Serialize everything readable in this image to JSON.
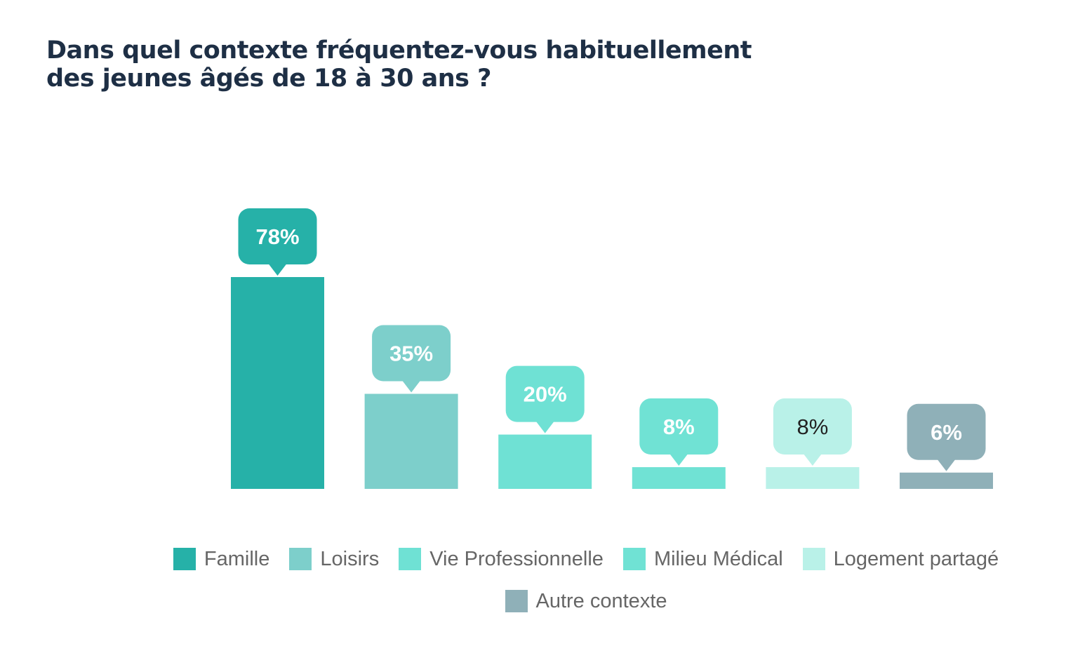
{
  "title": {
    "line1": "Dans quel contexte fréquentez-vous habituellement",
    "line2": "des jeunes âgés de 18 à 30 ans ?"
  },
  "chart_data": {
    "type": "bar",
    "title": "Dans quel contexte fréquentez-vous habituellement des jeunes âgés de 18 à 30 ans ?",
    "xlabel": "",
    "ylabel": "",
    "ylim": [
      0,
      100
    ],
    "grid": false,
    "legend_position": "bottom",
    "categories": [
      "Famille",
      "Loisirs",
      "Vie Professionnelle",
      "Milieu Médical",
      "Logement partagé",
      "Autre contexte"
    ],
    "values": [
      78,
      35,
      20,
      8,
      8,
      6
    ],
    "data_labels": [
      "78%",
      "35%",
      "20%",
      "8%",
      "8%",
      "6%"
    ],
    "colors": [
      "#26b1a8",
      "#7dcfcb",
      "#6fe1d4",
      "#70e2d4",
      "#b9f1e8",
      "#8fb0b8"
    ],
    "label_text_colors": [
      "#ffffff",
      "#ffffff",
      "#ffffff",
      "#ffffff",
      "#222222",
      "#ffffff"
    ]
  },
  "legend": {
    "items": [
      {
        "label": "Famille",
        "color": "#26b1a8"
      },
      {
        "label": "Loisirs",
        "color": "#7dcfcb"
      },
      {
        "label": "Vie Professionnelle",
        "color": "#6fe1d4"
      },
      {
        "label": "Milieu Médical",
        "color": "#70e2d4"
      },
      {
        "label": "Logement partagé",
        "color": "#b9f1e8"
      },
      {
        "label": "Autre contexte",
        "color": "#8fb0b8"
      }
    ]
  }
}
